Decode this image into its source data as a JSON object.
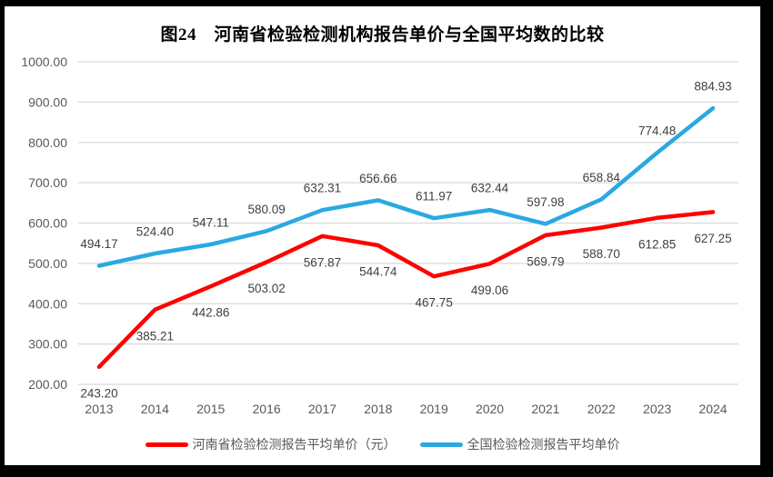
{
  "window": {
    "border_color": "#000000",
    "background_color": "#ffffff"
  },
  "chart_data": {
    "type": "line",
    "title": "图24　河南省检验检测机构报告单价与全国平均数的比较",
    "categories": [
      "2013",
      "2014",
      "2015",
      "2016",
      "2017",
      "2018",
      "2019",
      "2020",
      "2021",
      "2022",
      "2023",
      "2024"
    ],
    "series": [
      {
        "name": "河南省检验检测报告平均单价（元）",
        "color": "#FF0000",
        "label_position": "below",
        "values": [
          243.2,
          385.21,
          442.86,
          503.02,
          567.87,
          544.74,
          467.75,
          499.06,
          569.79,
          588.7,
          612.85,
          627.25
        ]
      },
      {
        "name": "全国检验检测报告平均单价",
        "color": "#29A9E1",
        "label_position": "above",
        "values": [
          494.17,
          524.4,
          547.11,
          580.09,
          632.31,
          656.66,
          611.97,
          632.44,
          597.98,
          658.84,
          774.48,
          884.93
        ]
      }
    ],
    "xlabel": "",
    "ylabel": "",
    "ylim": [
      200,
      1000
    ],
    "ytick_step": 100,
    "y_tick_labels": [
      "200.00",
      "300.00",
      "400.00",
      "500.00",
      "600.00",
      "700.00",
      "800.00",
      "900.00",
      "1000.00"
    ],
    "grid": true,
    "legend_position": "bottom",
    "data_label_decimals": 2,
    "colors": {
      "gridline": "#D9D9D9",
      "tick_label": "#595959",
      "data_label": "#404040",
      "title": "#000000"
    }
  }
}
